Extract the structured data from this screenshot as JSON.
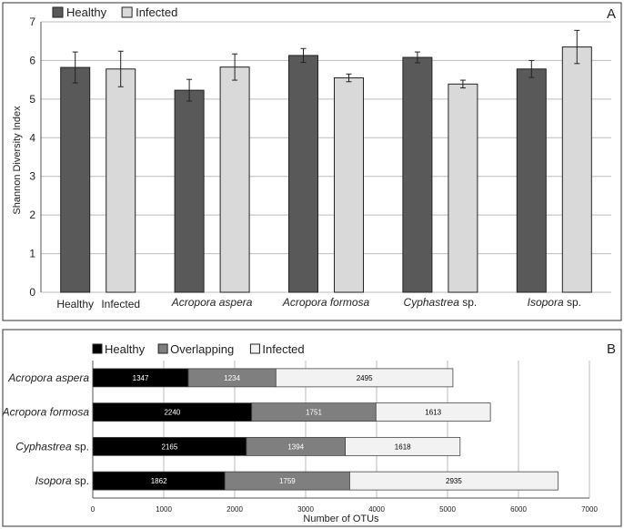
{
  "chart_data": [
    {
      "type": "bar",
      "panel": "A",
      "ylabel": "Shannon Diversity  Index",
      "ylim": [
        0,
        7
      ],
      "yticks": [
        0,
        1,
        2,
        3,
        4,
        5,
        6,
        7
      ],
      "grid": true,
      "legend_position": "top-left",
      "categories": [
        "",
        "Acropora aspera",
        "Acropora formosa",
        "Cyphastrea sp.",
        "Isopora sp."
      ],
      "category_labels": [
        {
          "text": "Healthy",
          "italic": "",
          "normal": "Healthy"
        },
        {
          "text": "Infected",
          "italic": "",
          "normal": "Infected"
        },
        {
          "text": "Acropora aspera",
          "italic": "Acropora aspera",
          "normal": ""
        },
        {
          "text": "Acropora formosa",
          "italic": "Acropora formosa",
          "normal": ""
        },
        {
          "text": "Cyphastrea sp.",
          "italic": "Cyphastrea",
          "normal": " sp."
        },
        {
          "text": "Isopora sp.",
          "italic": "Isopora",
          "normal": " sp."
        }
      ],
      "series": [
        {
          "name": "Healthy",
          "color": "#595959",
          "values": [
            5.82,
            5.23,
            6.13,
            6.08,
            5.78
          ],
          "errors": [
            0.4,
            0.28,
            0.18,
            0.14,
            0.22
          ]
        },
        {
          "name": "Infected",
          "color": "#d9d9d9",
          "values": [
            5.78,
            5.83,
            5.55,
            5.39,
            6.35
          ],
          "errors": [
            0.46,
            0.34,
            0.1,
            0.1,
            0.43
          ]
        }
      ]
    },
    {
      "type": "bar",
      "orientation": "horizontal",
      "stacked": true,
      "panel": "B",
      "xlabel": "Number of OTUs",
      "xlim": [
        0,
        7000
      ],
      "xticks": [
        0,
        1000,
        2000,
        3000,
        4000,
        5000,
        6000,
        7000
      ],
      "grid": true,
      "legend_position": "top-left",
      "categories": [
        "Acropora aspera",
        "Acropora formosa",
        "Cyphastrea sp.",
        "Isopora sp."
      ],
      "category_labels": [
        {
          "italic": "Acropora aspera",
          "normal": ""
        },
        {
          "italic": "Acropora formosa",
          "normal": ""
        },
        {
          "italic": "Cyphastrea",
          "normal": " sp."
        },
        {
          "italic": "Isopora",
          "normal": " sp."
        }
      ],
      "series": [
        {
          "name": "Healthy",
          "color": "#000000",
          "label_color": "#ffffff",
          "values": [
            1347,
            2240,
            2165,
            1862
          ]
        },
        {
          "name": "Overlapping",
          "color": "#7f7f7f",
          "label_color": "#ffffff",
          "values": [
            1234,
            1751,
            1394,
            1759
          ]
        },
        {
          "name": "Infected",
          "color": "#f2f2f2",
          "label_color": "#000000",
          "values": [
            2495,
            1613,
            1618,
            2935
          ]
        }
      ]
    }
  ]
}
